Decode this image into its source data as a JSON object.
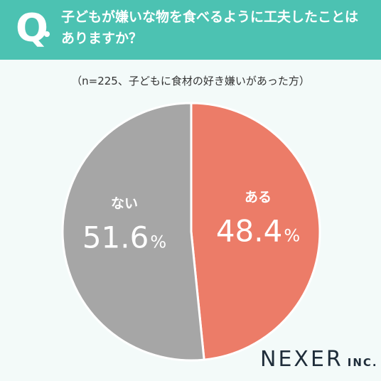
{
  "header": {
    "q_label": "Q",
    "question": "子どもが嫌いな物を食べるように工夫したことはありますか？"
  },
  "subtitle": "（n=225、子どもに食材の好き嫌いがあった方）",
  "brand": {
    "name": "NEXER",
    "suffix": "INC."
  },
  "colors": {
    "header": "#4cc2b2",
    "aru": "#ec7c68",
    "nai": "#a6a6a6",
    "background": "#f3faf9"
  },
  "chart_data": {
    "type": "pie",
    "slices": [
      {
        "label": "ある",
        "value": 48.4,
        "percent_text": "48.4",
        "unit": "%",
        "color": "#ec7c68"
      },
      {
        "label": "ない",
        "value": 51.6,
        "percent_text": "51.6",
        "unit": "%",
        "color": "#a6a6a6"
      }
    ],
    "start": "top",
    "direction": "clockwise"
  }
}
